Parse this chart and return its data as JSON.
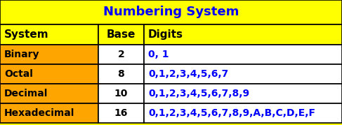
{
  "title": "Numbering System",
  "title_color": "#0000FF",
  "title_bg": "#FFFF00",
  "header_row": [
    "System",
    "Base",
    "Digits"
  ],
  "header_bg": "#FFFF00",
  "header_color": "#000000",
  "rows": [
    [
      "Binary",
      "2",
      "0, 1"
    ],
    [
      "Octal",
      "8",
      "0,1,2,3,4,5,6,7"
    ],
    [
      "Decimal",
      "10",
      "0,1,2,3,4,5,6,7,8,9"
    ],
    [
      "Hexadecimal",
      "16",
      "0,1,2,3,4,5,6,7,8,9,A,B,C,D,E,F"
    ]
  ],
  "col0_bg": "#FFA500",
  "col0_color": "#000000",
  "col1_bg": "#FFFFFF",
  "col1_color": "#000000",
  "col2_bg": "#FFFFFF",
  "col2_color": "#0000FF",
  "border_color": "#000000",
  "title_fontsize": 13,
  "header_fontsize": 11,
  "cell_fontsize": 10,
  "fig_width": 4.87,
  "fig_height": 1.79,
  "dpi": 100
}
